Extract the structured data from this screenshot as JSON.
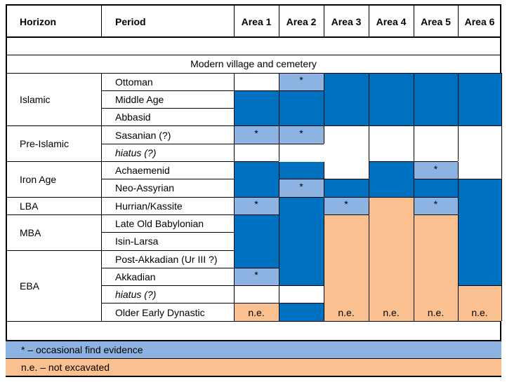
{
  "columns": [
    "Horizon",
    "Period",
    "Area 1",
    "Area 2",
    "Area 3",
    "Area 4",
    "Area 5",
    "Area 6"
  ],
  "banner": "Modern village and cemetery",
  "periods": [
    "Ottoman",
    "Middle Age",
    "Abbasid",
    "Sasanian (?)",
    "hiatus (?)",
    "Achaemenid",
    "Neo-Assyrian",
    "Hurrian/Kassite",
    "Late Old Babylonian",
    "Isin-Larsa",
    "Post-Akkadian (Ur III ?)",
    "Akkadian",
    "hiatus (?)",
    "Older Early Dynastic"
  ],
  "italic_periods": [
    4,
    12
  ],
  "horizons": [
    {
      "label": "Islamic",
      "start": 0,
      "end": 2
    },
    {
      "label": "Pre-Islamic",
      "start": 3,
      "end": 4
    },
    {
      "label": "Iron Age",
      "start": 5,
      "end": 6
    },
    {
      "label": "LBA",
      "start": 7,
      "end": 7
    },
    {
      "label": "MBA",
      "start": 8,
      "end": 9
    },
    {
      "label": "EBA",
      "start": 10,
      "end": 13
    }
  ],
  "colors": {
    "evidence": "#0070C0",
    "occasional": "#8DB3E2",
    "not_excavated": "#FAC090",
    "none": "#FFFFFF"
  },
  "area_cells": [
    {
      "area": 0,
      "start": 0,
      "end": 0,
      "type": "none"
    },
    {
      "area": 0,
      "start": 1,
      "end": 2,
      "type": "evidence"
    },
    {
      "area": 0,
      "start": 3,
      "end": 3,
      "type": "occasional",
      "mark": "*"
    },
    {
      "area": 0,
      "start": 4,
      "end": 4,
      "type": "none"
    },
    {
      "area": 0,
      "start": 5,
      "end": 6,
      "type": "evidence"
    },
    {
      "area": 0,
      "start": 7,
      "end": 7,
      "type": "occasional",
      "mark": "*"
    },
    {
      "area": 0,
      "start": 8,
      "end": 10,
      "type": "evidence"
    },
    {
      "area": 0,
      "start": 11,
      "end": 11,
      "type": "occasional",
      "mark": "*"
    },
    {
      "area": 0,
      "start": 12,
      "end": 12,
      "type": "none"
    },
    {
      "area": 0,
      "start": 13,
      "end": 13,
      "type": "not_excavated",
      "mark": "n.e."
    },
    {
      "area": 1,
      "start": 0,
      "end": 0,
      "type": "occasional",
      "mark": "*"
    },
    {
      "area": 1,
      "start": 1,
      "end": 2,
      "type": "evidence"
    },
    {
      "area": 1,
      "start": 3,
      "end": 3,
      "type": "occasional",
      "mark": "*"
    },
    {
      "area": 1,
      "start": 4,
      "end": 4,
      "type": "none"
    },
    {
      "area": 1,
      "start": 5,
      "end": 5,
      "type": "evidence"
    },
    {
      "area": 1,
      "start": 6,
      "end": 6,
      "type": "occasional",
      "mark": "*"
    },
    {
      "area": 1,
      "start": 7,
      "end": 11,
      "type": "evidence"
    },
    {
      "area": 1,
      "start": 12,
      "end": 12,
      "type": "none"
    },
    {
      "area": 1,
      "start": 13,
      "end": 13,
      "type": "evidence"
    },
    {
      "area": 2,
      "start": 0,
      "end": 2,
      "type": "evidence"
    },
    {
      "area": 2,
      "start": 3,
      "end": 5,
      "type": "none"
    },
    {
      "area": 2,
      "start": 6,
      "end": 6,
      "type": "evidence"
    },
    {
      "area": 2,
      "start": 7,
      "end": 7,
      "type": "occasional",
      "mark": "*"
    },
    {
      "area": 2,
      "start": 8,
      "end": 13,
      "type": "not_excavated",
      "mark": "n.e."
    },
    {
      "area": 3,
      "start": 0,
      "end": 2,
      "type": "evidence"
    },
    {
      "area": 3,
      "start": 3,
      "end": 4,
      "type": "none"
    },
    {
      "area": 3,
      "start": 5,
      "end": 6,
      "type": "evidence"
    },
    {
      "area": 3,
      "start": 7,
      "end": 13,
      "type": "not_excavated",
      "mark": "n.e."
    },
    {
      "area": 4,
      "start": 0,
      "end": 2,
      "type": "evidence"
    },
    {
      "area": 4,
      "start": 3,
      "end": 4,
      "type": "none"
    },
    {
      "area": 4,
      "start": 5,
      "end": 5,
      "type": "occasional",
      "mark": "*"
    },
    {
      "area": 4,
      "start": 6,
      "end": 6,
      "type": "evidence"
    },
    {
      "area": 4,
      "start": 7,
      "end": 7,
      "type": "occasional",
      "mark": "*"
    },
    {
      "area": 4,
      "start": 8,
      "end": 13,
      "type": "not_excavated",
      "mark": "n.e."
    },
    {
      "area": 5,
      "start": 0,
      "end": 2,
      "type": "evidence"
    },
    {
      "area": 5,
      "start": 3,
      "end": 5,
      "type": "none"
    },
    {
      "area": 5,
      "start": 6,
      "end": 11,
      "type": "evidence"
    },
    {
      "area": 5,
      "start": 12,
      "end": 13,
      "type": "not_excavated",
      "mark": "n.e."
    }
  ],
  "legend": [
    {
      "text": "*     – occasional find evidence",
      "type": "occasional"
    },
    {
      "text": "n.e. – not excavated",
      "type": "not_excavated"
    }
  ]
}
